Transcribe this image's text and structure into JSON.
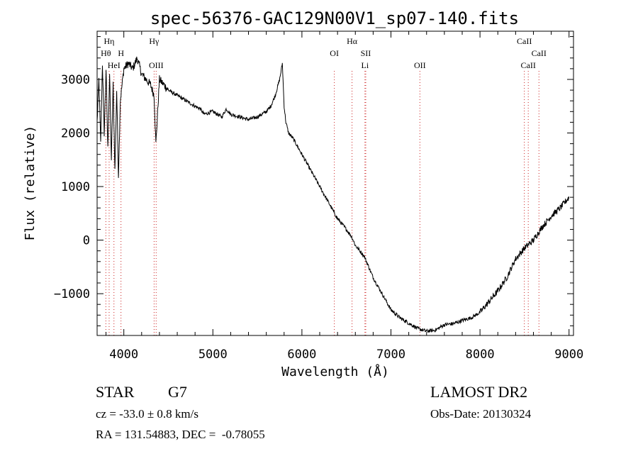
{
  "chart_data": {
    "type": "line",
    "title": "spec-56376-GAC129N00V1_sp07-140.fits",
    "xlabel": "Wavelength (Å)",
    "ylabel": "Flux (relative)",
    "xlim": [
      3700,
      9050
    ],
    "ylim": [
      -1780,
      3900
    ],
    "x_ticks": [
      4000,
      5000,
      6000,
      7000,
      8000,
      9000
    ],
    "y_ticks": [
      -1000,
      0,
      1000,
      2000,
      3000
    ],
    "grid": false,
    "series_color": "#000000",
    "line_marker_color": "#cc2222",
    "spectrum": {
      "x": [
        3700,
        3720,
        3740,
        3760,
        3780,
        3800,
        3820,
        3840,
        3860,
        3880,
        3900,
        3920,
        3940,
        3960,
        3980,
        4000,
        4050,
        4100,
        4150,
        4200,
        4250,
        4300,
        4340,
        4360,
        4400,
        4450,
        4500,
        4600,
        4700,
        4800,
        4860,
        4900,
        5000,
        5100,
        5150,
        5200,
        5300,
        5400,
        5500,
        5600,
        5650,
        5700,
        5750,
        5780,
        5800,
        5820,
        5850,
        5900,
        6000,
        6100,
        6200,
        6300,
        6400,
        6500,
        6563,
        6600,
        6700,
        6800,
        6900,
        7000,
        7100,
        7200,
        7300,
        7400,
        7500,
        7600,
        7700,
        7800,
        7900,
        8000,
        8100,
        8200,
        8300,
        8400,
        8500,
        8600,
        8700,
        8800,
        8900,
        9000
      ],
      "y": [
        2200,
        3000,
        1800,
        3300,
        2000,
        3200,
        1700,
        3100,
        1500,
        2900,
        1300,
        2800,
        1200,
        2600,
        2900,
        3200,
        3300,
        3200,
        3400,
        3100,
        3000,
        2900,
        2700,
        1800,
        3000,
        2900,
        2800,
        2700,
        2600,
        2500,
        2450,
        2350,
        2400,
        2300,
        2450,
        2350,
        2300,
        2250,
        2300,
        2400,
        2500,
        2700,
        3000,
        3300,
        2500,
        2200,
        2000,
        1900,
        1600,
        1300,
        1000,
        700,
        400,
        200,
        50,
        -100,
        -300,
        -700,
        -1000,
        -1300,
        -1450,
        -1550,
        -1650,
        -1700,
        -1680,
        -1580,
        -1560,
        -1500,
        -1450,
        -1350,
        -1150,
        -950,
        -700,
        -350,
        -150,
        0,
        250,
        450,
        600,
        800
      ]
    },
    "spectral_lines": [
      {
        "label": "Hη",
        "wavelength": 3835,
        "row": 1
      },
      {
        "label": "Hθ",
        "wavelength": 3798,
        "row": 2
      },
      {
        "label": "H",
        "wavelength": 3968,
        "row": 2
      },
      {
        "label": "HeI",
        "wavelength": 3889,
        "row": 3
      },
      {
        "label": "Hγ",
        "wavelength": 4340,
        "row": 1
      },
      {
        "label": "OIII",
        "wavelength": 4363,
        "row": 3
      },
      {
        "label": "Hα",
        "wavelength": 6563,
        "row": 1
      },
      {
        "label": "OI",
        "wavelength": 6364,
        "row": 2
      },
      {
        "label": "SII",
        "wavelength": 6717,
        "row": 2
      },
      {
        "label": "Li",
        "wavelength": 6708,
        "row": 3
      },
      {
        "label": "OII",
        "wavelength": 7325,
        "row": 3
      },
      {
        "label": "CaII",
        "wavelength": 8498,
        "row": 1
      },
      {
        "label": "CaII",
        "wavelength": 8662,
        "row": 2
      },
      {
        "label": "CaII",
        "wavelength": 8542,
        "row": 3
      }
    ]
  },
  "info": {
    "object_class": "STAR",
    "subclass": "G7",
    "survey": "LAMOST DR2",
    "redshift": "cz = -33.0 ± 0.8 km/s",
    "obs_date": "Obs-Date: 20130324",
    "coordinates": "RA = 131.54883, DEC =  -0.78055"
  }
}
